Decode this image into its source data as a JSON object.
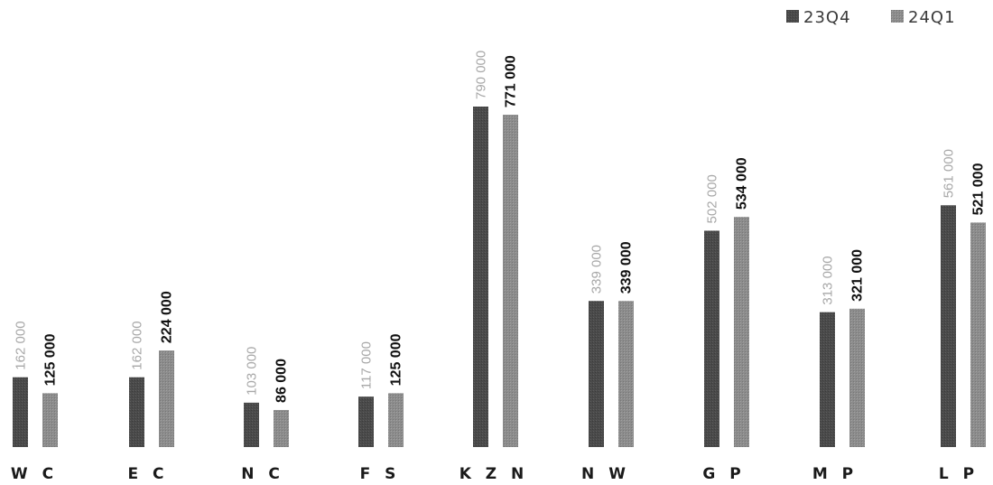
{
  "chart_data": {
    "type": "bar",
    "title": "",
    "xlabel": "",
    "ylabel": "",
    "categories": [
      "WC",
      "EC",
      "NC",
      "FS",
      "KZN",
      "NW",
      "GP",
      "MP",
      "LP"
    ],
    "category_labels": [
      "W C",
      "E C",
      "N C",
      "F S",
      "K Z N",
      "N W",
      "G P",
      "M P",
      "L P"
    ],
    "series": [
      {
        "name": "23Q4",
        "color": "#4a4a4a",
        "values": [
          162000,
          162000,
          103000,
          117000,
          790000,
          339000,
          502000,
          313000,
          561000
        ],
        "labels": [
          "162 000",
          "162 000",
          "103 000",
          "117 000",
          "790 000",
          "339 000",
          "502 000",
          "313 000",
          "561 000"
        ]
      },
      {
        "name": "24Q1",
        "color": "#8c8c8c",
        "values": [
          125000,
          224000,
          86000,
          125000,
          771000,
          339000,
          534000,
          321000,
          521000
        ],
        "labels": [
          "125 000",
          "224 000",
          "86 000",
          "125 000",
          "771 000",
          "339 000",
          "534 000",
          "321 000",
          "521 000"
        ]
      }
    ],
    "ylim": [
      0,
      790000
    ],
    "grid": false,
    "legend_position": "top-right"
  }
}
